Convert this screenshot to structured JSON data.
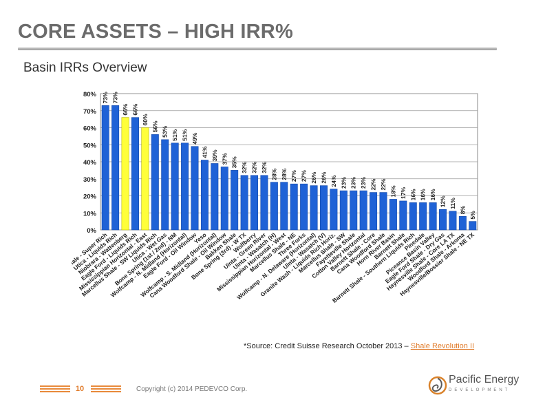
{
  "slide": {
    "title": "CORE ASSETS – HIGH IRR%",
    "subtitle": "Basin IRRs Overview",
    "source_prefix": "*Source: Credit Suisse Research October 2013 – ",
    "source_link": "Shale Revolution II",
    "page_number": "10",
    "copyright": "Copyright (c) 2014 PEDEVCO Corp.",
    "logo_name": "Pacific Energy",
    "logo_sub": "DEVELOPMENT"
  },
  "colors": {
    "bar": "#1f62d6",
    "highlight": "#ffff3a",
    "accent": "#e07b2a",
    "title": "#6b6b6b"
  },
  "chart_data": {
    "type": "bar",
    "title": "",
    "xlabel": "",
    "ylabel": "",
    "ylim": [
      0,
      80
    ],
    "ytick_labels": [
      "0%",
      "10%",
      "20%",
      "30%",
      "40%",
      "50%",
      "60%",
      "70%",
      "80%"
    ],
    "grid": true,
    "categories": [
      "Marcellus Shale - Super Rich",
      "Utica - Liquids Rich",
      "Niobrara - Wattenberg",
      "Eagle Ford - Liquids Rich",
      "Mississippian Horizontal - East",
      "Marcellus Shale - SW Liquids Rich",
      "Utica - Wet Gas",
      "Bone Spring (1st / 2nd) - NM",
      "Wolfcamp - N. Midland (Horizontal)",
      "Eagle Ford - Oil Window",
      "Yeso",
      "Wolfcamp - S. Midland (Horizontal)",
      "Cana Woodford Shale - Oil Window",
      "Bakken Shale",
      "Bone Spring (3rd) - W TX",
      "Wolfberry",
      "Uinta - Green River",
      "Uinta - Wasatch (H)",
      "Mississippian Horizontal - West",
      "Marcellus Shale - NE",
      "Three Forks",
      "Wolfcamp - N. Delaware (Horizontal)",
      "Uinta - Wasatch (V)",
      "Granite Wash - Liquids Rich Horiz.",
      "Marcellus Shale - SW",
      "Fayetteville Shale",
      "Cotton Valley Horizontal",
      "Barnett Shale - Core",
      "Cana Woodford Shale",
      "Horn River Basin",
      "Barnett Shale",
      "Barnett Shale - Southern Liquids Rich",
      "Pinedale",
      "Piceance Basin Valley",
      "Eagle Ford Shale - Dry Gas",
      "Haynesville Shale - Core LA TX",
      "Woodford Shale - Arkoma",
      "Haynesville/Bossier Shale - NE TX"
    ],
    "values": [
      73,
      73,
      66,
      66,
      60,
      56,
      53,
      51,
      51,
      49,
      41,
      39,
      37,
      35,
      32,
      32,
      32,
      28,
      28,
      27,
      27,
      26,
      26,
      24,
      23,
      23,
      23,
      22,
      22,
      18,
      17,
      16,
      16,
      16,
      12,
      11,
      8,
      5
    ],
    "value_labels": [
      "73%",
      "73%",
      "66%",
      "66%",
      "60%",
      "56%",
      "53%",
      "51%",
      "51%",
      "49%",
      "41%",
      "39%",
      "37%",
      "35%",
      "32%",
      "32%",
      "32%",
      "28%",
      "28%",
      "27%",
      "27%",
      "26%",
      "26%",
      "24%",
      "23%",
      "23%",
      "23%",
      "22%",
      "22%",
      "18%",
      "17%",
      "16%",
      "16%",
      "16%",
      "12%",
      "11%",
      "8%",
      "5%"
    ],
    "highlighted": [
      "Niobrara - Wattenberg",
      "Mississippian Horizontal - East"
    ]
  }
}
